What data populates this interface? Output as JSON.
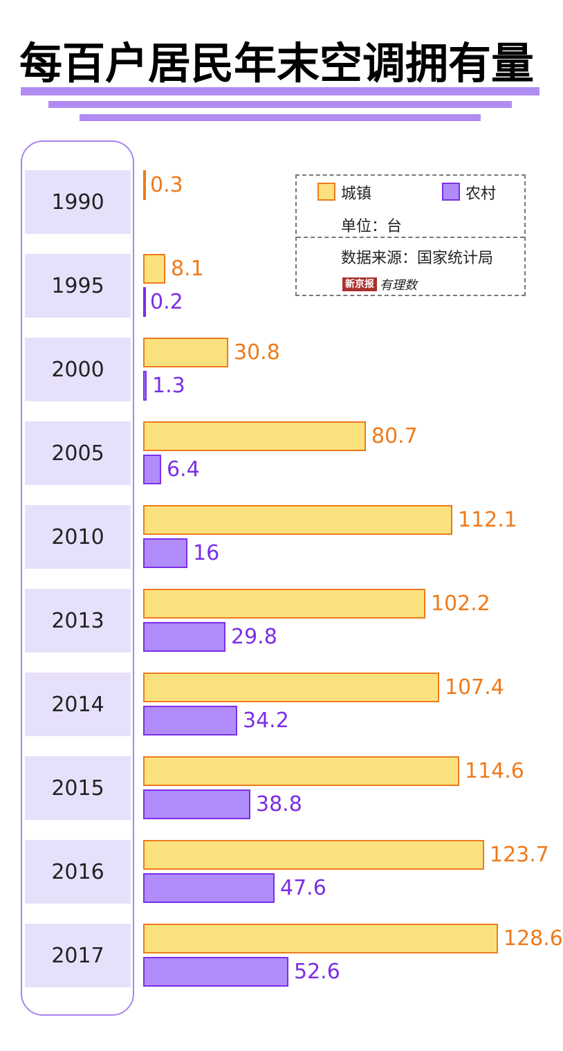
{
  "title": "每百户居民年末空调拥有量",
  "colors": {
    "urban_fill": "#fbe27f",
    "urban_stroke": "#ee7a1a",
    "rural_fill": "#b08cfb",
    "rural_stroke": "#7b2ee6",
    "accent": "#b08cf2"
  },
  "legend": {
    "urban": "城镇",
    "rural": "农村",
    "unit": "单位：台",
    "source": "数据来源：国家统计局",
    "logo_box": "新京报",
    "logo_script": "有理数"
  },
  "chart_data": {
    "type": "bar",
    "orientation": "horizontal",
    "title": "每百户居民年末空调拥有量",
    "unit": "台",
    "categories": [
      "1990",
      "1995",
      "2000",
      "2005",
      "2010",
      "2013",
      "2014",
      "2015",
      "2016",
      "2017"
    ],
    "series": [
      {
        "name": "城镇",
        "values": [
          0.3,
          8.1,
          30.8,
          80.7,
          112.1,
          102.2,
          107.4,
          114.6,
          123.7,
          128.6
        ],
        "labels": [
          "0.3",
          "8.1",
          "30.8",
          "80.7",
          "112.1",
          "102.2",
          "107.4",
          "114.6",
          "123.7",
          "128.6"
        ]
      },
      {
        "name": "农村",
        "values": [
          null,
          0.2,
          1.3,
          6.4,
          16,
          29.8,
          34.2,
          38.8,
          47.6,
          52.6
        ],
        "labels": [
          "",
          "0.2",
          "1.3",
          "6.4",
          "16",
          "29.8",
          "34.2",
          "38.8",
          "47.6",
          "52.6"
        ]
      }
    ],
    "xlim": [
      0,
      128.6
    ],
    "legend_position": "top-right",
    "source": "数据来源：国家统计局"
  }
}
